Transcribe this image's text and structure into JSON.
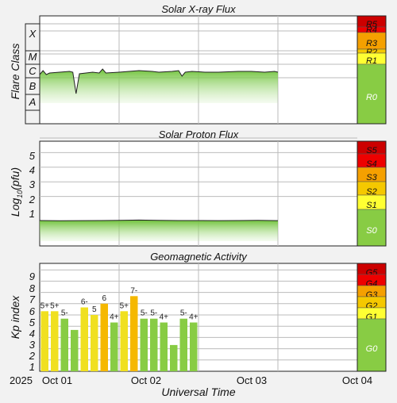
{
  "chart_data": [
    {
      "type": "line",
      "title": "Solar X-ray Flux",
      "ylabel": "Flare Class",
      "y_categories": [
        "A",
        "B",
        "C",
        "M",
        "X"
      ],
      "scale_labels": [
        "R5",
        "R4",
        "R3",
        "R2",
        "R1",
        "R0"
      ],
      "scale_colors": [
        "#cc0000",
        "#ee0000",
        "#f5a000",
        "#f5c800",
        "#ffff33",
        "#88cc44"
      ],
      "x_ticks": [
        "Oct 01",
        "Oct 02",
        "Oct 03"
      ],
      "series": [
        {
          "x_hours": [
            0,
            1,
            2,
            3,
            6,
            9,
            10,
            11,
            12,
            14,
            16,
            18,
            19,
            20,
            24,
            30,
            34,
            36,
            40,
            42,
            43,
            44,
            46,
            50,
            54,
            60,
            64,
            68,
            71,
            72
          ],
          "y_class": [
            1.9,
            2.15,
            1.9,
            2.0,
            2.05,
            2.1,
            2.05,
            0.7,
            1.95,
            2.0,
            2.05,
            2.0,
            2.25,
            2.0,
            2.05,
            2.15,
            2.1,
            2.05,
            2.1,
            2.15,
            1.8,
            2.05,
            2.1,
            2.05,
            2.05,
            2.1,
            2.1,
            2.05,
            2.1,
            2.05
          ]
        }
      ]
    },
    {
      "type": "line",
      "title": "Solar Proton Flux",
      "ylabel": "Log10(pfu)",
      "y_ticks": [
        1,
        2,
        3,
        4,
        5
      ],
      "scale_labels": [
        "S5",
        "S4",
        "S3",
        "S2",
        "S1",
        "S0"
      ],
      "scale_colors": [
        "#cc0000",
        "#ee0000",
        "#f5a000",
        "#f5c800",
        "#ffff33",
        "#88cc44"
      ],
      "x_ticks": [
        "Oct 01",
        "Oct 02",
        "Oct 03"
      ],
      "series": [
        {
          "x_hours": [
            0,
            6,
            12,
            18,
            24,
            30,
            36,
            42,
            48,
            54,
            60,
            66,
            72
          ],
          "y_log": [
            -0.65,
            -0.67,
            -0.66,
            -0.65,
            -0.64,
            -0.62,
            -0.64,
            -0.65,
            -0.65,
            -0.66,
            -0.65,
            -0.64,
            -0.66
          ]
        }
      ]
    },
    {
      "type": "bar",
      "title": "Geomagnetic Activity",
      "ylabel": "Kp index",
      "xlabel": "Universal Time",
      "y_ticks": [
        1,
        2,
        3,
        4,
        5,
        6,
        7,
        8,
        9
      ],
      "scale_labels": [
        "G5",
        "G4",
        "G3",
        "G2",
        "G1",
        "G0"
      ],
      "scale_colors": [
        "#cc0000",
        "#ee0000",
        "#f5a000",
        "#f5c800",
        "#ffff33",
        "#88cc44"
      ],
      "x_ticks": [
        "2025",
        "Oct 01",
        "Oct 02",
        "Oct 03",
        "Oct 04"
      ],
      "values": [
        5.33,
        5.33,
        4.67,
        3.67,
        5.67,
        5.0,
        6.0,
        4.33,
        5.33,
        6.67,
        4.67,
        4.67,
        4.33,
        2.33,
        4.67,
        4.33
      ],
      "labels": [
        "5+",
        "5+",
        "5-",
        "",
        "6-",
        "5",
        "6",
        "4+",
        "5+",
        "7-",
        "5-",
        "5-",
        "4+",
        "",
        "5-",
        "4+"
      ],
      "colors": [
        "#f0e020",
        "#f0e020",
        "#88cc44",
        "#88cc44",
        "#f0e020",
        "#f0e020",
        "#f5b800",
        "#88cc44",
        "#f0e020",
        "#f5b800",
        "#88cc44",
        "#88cc44",
        "#88cc44",
        "#88cc44",
        "#88cc44",
        "#88cc44"
      ]
    }
  ]
}
